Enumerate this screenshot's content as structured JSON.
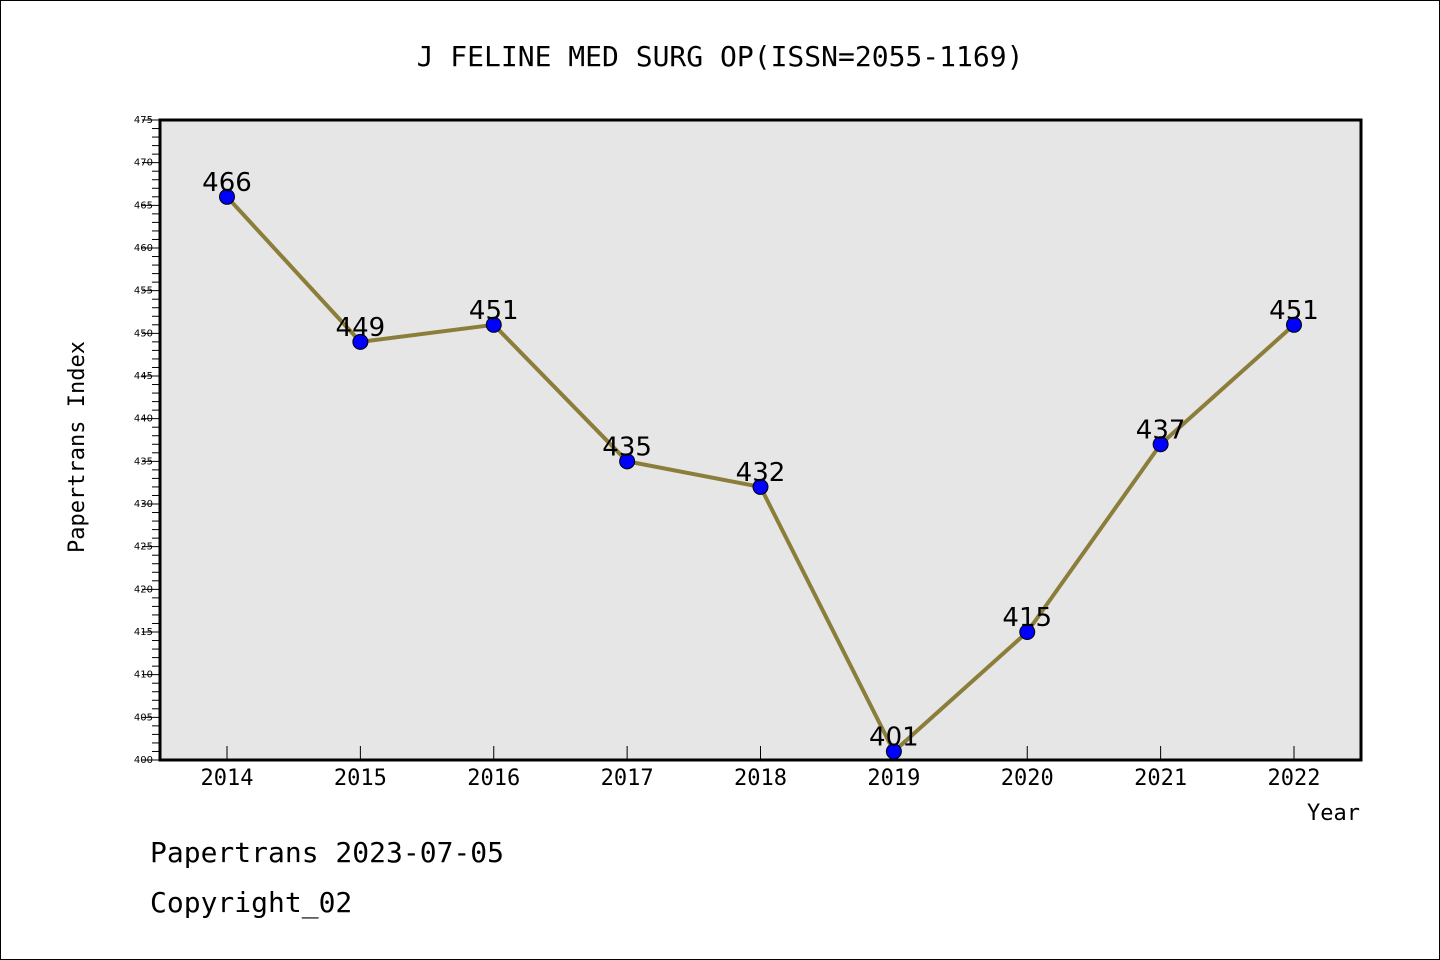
{
  "chart_data": {
    "type": "line",
    "title": "J FELINE MED SURG OP(ISSN=2055-1169)",
    "xlabel": "Year",
    "ylabel": "Papertrans Index",
    "categories": [
      "2014",
      "2015",
      "2016",
      "2017",
      "2018",
      "2019",
      "2020",
      "2021",
      "2022"
    ],
    "series": [
      {
        "values": [
          466,
          449,
          451,
          435,
          432,
          401,
          415,
          437,
          451
        ]
      }
    ],
    "ylim": [
      400,
      475
    ],
    "yticks": [
      400,
      405,
      410,
      415,
      420,
      425,
      430,
      435,
      440,
      445,
      450,
      455,
      460,
      465,
      470,
      475
    ],
    "data_labels": true,
    "grid": false,
    "plot_background": "#e6e6e6",
    "line_color": "#8b7d3a",
    "marker_color": "#0000ff"
  },
  "footer": {
    "date_line": "Papertrans 2023-07-05",
    "copyright_line": "Copyright_02"
  }
}
